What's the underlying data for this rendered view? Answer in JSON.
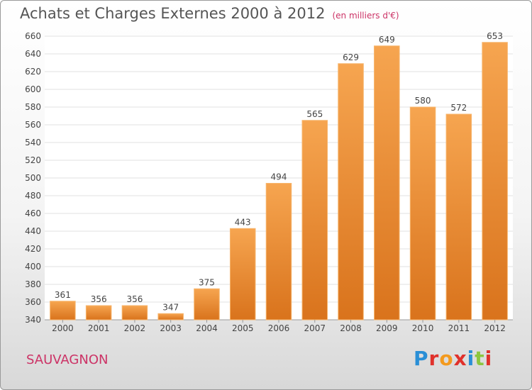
{
  "header": {
    "title": "Achats et Charges Externes 2000 à 2012",
    "unit": "(en milliers d'€)"
  },
  "footer": {
    "commune": "SAUVAGNON",
    "logo": "Proxiti",
    "logo_colors": [
      "#2a8fd6",
      "#e0312b",
      "#f39a1e",
      "#e0312b",
      "#2a8fd6",
      "#8cc63f",
      "#e0312b"
    ]
  },
  "colors": {
    "bar_light": "#f6a550",
    "bar_dark": "#d9731c",
    "grid": "#e2e2e2"
  },
  "chart_data": {
    "type": "bar",
    "title": "Achats et Charges Externes 2000 à 2012",
    "subtitle": "(en milliers d'€)",
    "categories": [
      "2000",
      "2001",
      "2002",
      "2003",
      "2004",
      "2005",
      "2006",
      "2007",
      "2008",
      "2009",
      "2010",
      "2011",
      "2012"
    ],
    "values": [
      361,
      356,
      356,
      347,
      375,
      443,
      494,
      565,
      629,
      649,
      580,
      572,
      653
    ],
    "ylim": [
      340,
      660
    ],
    "yticks": [
      340,
      360,
      380,
      400,
      420,
      440,
      460,
      480,
      500,
      520,
      540,
      560,
      580,
      600,
      620,
      640,
      660
    ],
    "grid": true,
    "data_labels": true
  }
}
